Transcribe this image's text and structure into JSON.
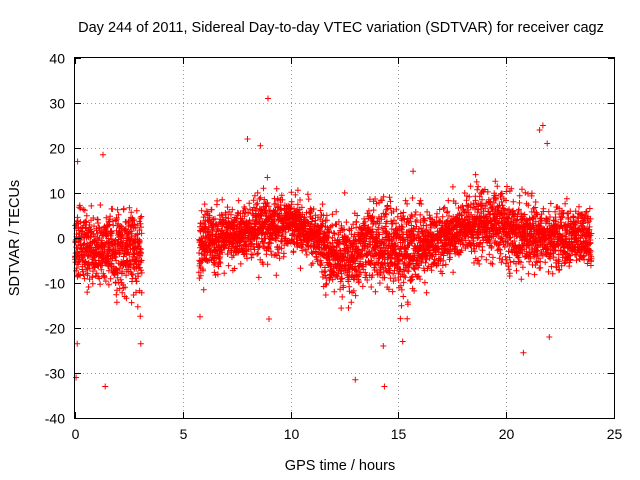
{
  "chart_data": {
    "type": "scatter",
    "title": "Day 244 of 2011, Sidereal Day-to-day VTEC variation (SDTVAR) for receiver cagz",
    "xlabel": "GPS time / hours",
    "ylabel": "SDTVAR / TECUs",
    "xlim": [
      0,
      25
    ],
    "ylim": [
      -40,
      40
    ],
    "x_ticks": [
      0,
      5,
      10,
      15,
      20,
      25
    ],
    "y_ticks": [
      -40,
      -30,
      -20,
      -10,
      0,
      10,
      20,
      30,
      40
    ],
    "x_tick_labels": [
      "0",
      "5",
      "10",
      "15",
      "20",
      "25"
    ],
    "y_tick_labels": [
      "-40",
      "-30",
      "-20",
      "-10",
      "0",
      "10",
      "20",
      "30",
      "40"
    ],
    "grid": true,
    "marker": "+",
    "color": "#ff0000",
    "series": [
      {
        "name": "SDTVAR",
        "segments": [
          {
            "x_start": 0.0,
            "x_end": 3.1,
            "sample_step": 0.005
          },
          {
            "x_start": 5.75,
            "x_end": 23.95,
            "sample_step": 0.005
          }
        ],
        "trend": {
          "x": [
            0,
            1,
            2,
            3,
            5.8,
            7,
            8,
            9,
            10,
            11,
            12,
            12.8,
            13.5,
            14.5,
            15.5,
            16.5,
            17.5,
            18.5,
            19.5,
            20.5,
            22,
            23,
            24
          ],
          "center": [
            -2,
            -3,
            -3,
            -3,
            -1,
            0,
            1,
            2,
            4,
            1,
            -4,
            -5,
            -1,
            -2,
            -3,
            -1,
            1,
            3,
            3,
            1,
            0,
            0,
            0
          ],
          "spread": [
            7,
            6,
            7,
            7,
            6,
            5,
            5,
            6,
            4,
            5,
            6,
            7,
            6,
            8,
            8,
            5,
            5,
            6,
            6,
            6,
            5,
            5,
            5
          ]
        },
        "labeled_points": [
          {
            "x": 0.05,
            "y": -31
          },
          {
            "x": 0.1,
            "y": -23.5
          },
          {
            "x": 0.12,
            "y": 17
          },
          {
            "x": 1.4,
            "y": -33
          },
          {
            "x": 1.3,
            "y": 18.5
          },
          {
            "x": 3.05,
            "y": -23.5
          },
          {
            "x": 5.8,
            "y": -17.5
          },
          {
            "x": 8.0,
            "y": 22
          },
          {
            "x": 8.6,
            "y": 20.5
          },
          {
            "x": 8.95,
            "y": 31
          },
          {
            "x": 9.0,
            "y": -18
          },
          {
            "x": 13.0,
            "y": -31.5
          },
          {
            "x": 14.35,
            "y": -33
          },
          {
            "x": 14.3,
            "y": -24
          },
          {
            "x": 15.2,
            "y": -23
          },
          {
            "x": 20.8,
            "y": -25.5
          },
          {
            "x": 21.55,
            "y": 24
          },
          {
            "x": 21.7,
            "y": 25
          },
          {
            "x": 21.9,
            "y": 21
          },
          {
            "x": 22.0,
            "y": -22
          }
        ]
      }
    ]
  }
}
